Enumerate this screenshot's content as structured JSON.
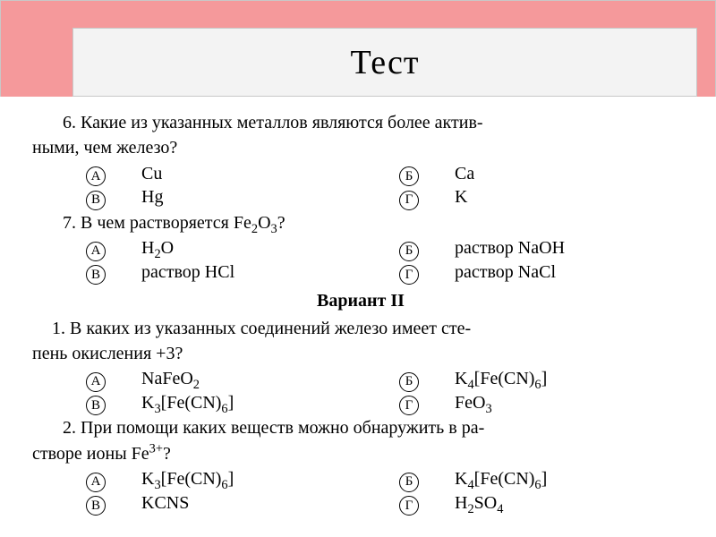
{
  "colors": {
    "header_bg": "#f5999b",
    "inner_bg": "#f3f3f3",
    "page_bg": "#ffffff",
    "text": "#000000",
    "border": "#c8c8c8"
  },
  "title": "Тест",
  "q6": {
    "text_line1": "6. Какие из указанных металлов являются более актив-",
    "text_line2": "ными, чем железо?",
    "opts": {
      "A": "Cu",
      "B": "Ca",
      "V": "Hg",
      "G": "K"
    }
  },
  "q7": {
    "text_line1": "7. В чем растворяется Fe",
    "opts": {
      "A": "H",
      "A_tail": "O",
      "B": "раствор NaOH",
      "V": "раствор HCl",
      "G": "раствор NaCl"
    }
  },
  "variant_label": "Вариант II",
  "q1": {
    "text_line1": "1. В каких из указанных соединений железо имеет сте-",
    "text_line2": "пень окисления +3?",
    "opts": {
      "A": "NaFeO",
      "B_pre": "K",
      "B_mid": "[Fe(CN)",
      "B_end": "]",
      "V_pre": "K",
      "V_mid": "[Fe(CN)",
      "V_end": "]",
      "G": "FeO"
    }
  },
  "q2": {
    "text_line1": "2. При помощи каких веществ можно обнаружить в ра-",
    "text_line2": "створе ионы Fe",
    "text_line2_tail": "?",
    "opts": {
      "A_pre": "K",
      "A_mid": "[Fe(CN)",
      "A_end": "]",
      "B_pre": "K",
      "B_mid": "[Fe(CN)",
      "B_end": "]",
      "V": "KCNS",
      "G_pre": "H",
      "G_mid": "SO"
    }
  },
  "markers": {
    "A": "А",
    "B": "Б",
    "V": "В",
    "G": "Г"
  }
}
